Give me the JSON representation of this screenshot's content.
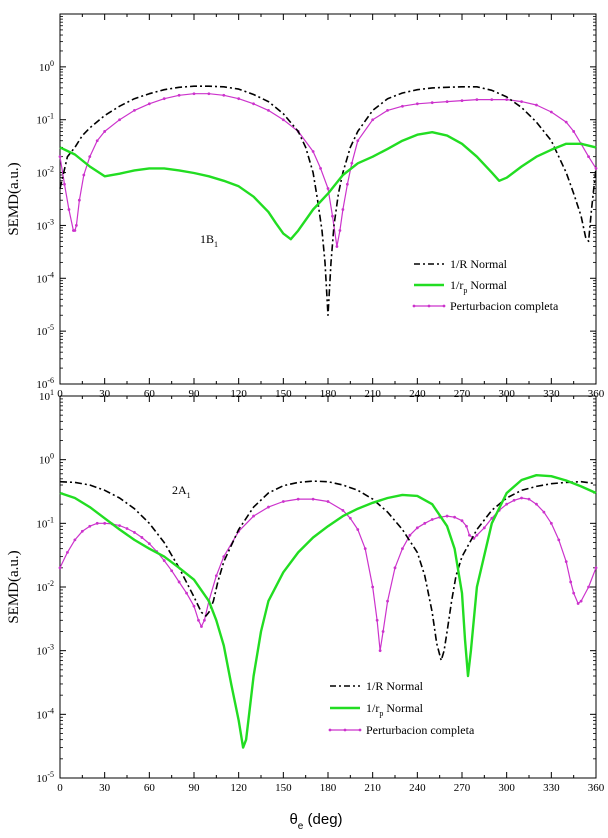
{
  "chart_data": [
    {
      "type": "line",
      "annotation": {
        "main": "1B",
        "sub": "1"
      },
      "ylabel": "SEMD(a.u.)",
      "yscale": "log",
      "xlim": [
        0,
        360
      ],
      "ylim_exp": [
        -6,
        1
      ],
      "xticks": [
        "0",
        "30",
        "60",
        "90",
        "120",
        "150",
        "180",
        "210",
        "240",
        "270",
        "300",
        "330",
        "360"
      ],
      "yticks": [
        {
          "exp": "-6"
        },
        {
          "exp": "-5"
        },
        {
          "exp": "-4"
        },
        {
          "exp": "-3"
        },
        {
          "exp": "-2"
        },
        {
          "exp": "-1"
        },
        {
          "exp": "0"
        }
      ],
      "legend": [
        {
          "main": "1/R Normal",
          "sub": ""
        },
        {
          "main": "1/r",
          "sub": "p",
          "tail": " Normal"
        },
        {
          "main": "Perturbacion completa",
          "sub": ""
        }
      ],
      "legend_position": "lower-right",
      "series": [
        {
          "name": "1/R Normal",
          "color": "#000000",
          "style": "dashdot",
          "x": [
            0,
            5,
            10,
            15,
            20,
            30,
            40,
            50,
            60,
            70,
            80,
            90,
            100,
            110,
            120,
            130,
            140,
            150,
            160,
            165,
            170,
            173,
            176,
            178,
            180,
            182,
            184,
            187,
            190,
            195,
            200,
            210,
            220,
            230,
            240,
            250,
            260,
            270,
            280,
            290,
            300,
            310,
            320,
            330,
            340,
            345,
            350,
            353,
            355,
            357,
            360
          ],
          "y": [
            0.005,
            0.02,
            0.03,
            0.05,
            0.07,
            0.12,
            0.18,
            0.25,
            0.31,
            0.37,
            0.41,
            0.43,
            0.43,
            0.42,
            0.38,
            0.3,
            0.22,
            0.13,
            0.06,
            0.03,
            0.01,
            0.003,
            0.0008,
            0.0002,
            2e-05,
            0.0002,
            0.001,
            0.004,
            0.01,
            0.03,
            0.06,
            0.15,
            0.25,
            0.32,
            0.37,
            0.4,
            0.41,
            0.42,
            0.42,
            0.36,
            0.27,
            0.17,
            0.09,
            0.04,
            0.01,
            0.004,
            0.0015,
            0.0006,
            0.0005,
            0.002,
            0.012
          ]
        },
        {
          "name": "1/r_p Normal",
          "color": "#22dd22",
          "style": "solid",
          "x": [
            0,
            10,
            20,
            30,
            40,
            50,
            60,
            70,
            80,
            90,
            100,
            110,
            120,
            130,
            140,
            145,
            150,
            155,
            160,
            170,
            180,
            190,
            200,
            210,
            220,
            230,
            240,
            250,
            260,
            270,
            280,
            290,
            295,
            300,
            310,
            320,
            330,
            340,
            350,
            360
          ],
          "y": [
            0.03,
            0.022,
            0.013,
            0.0085,
            0.0095,
            0.011,
            0.012,
            0.012,
            0.011,
            0.0098,
            0.0085,
            0.007,
            0.0055,
            0.0035,
            0.0018,
            0.0011,
            0.0007,
            0.00055,
            0.0008,
            0.002,
            0.004,
            0.009,
            0.015,
            0.02,
            0.028,
            0.04,
            0.052,
            0.058,
            0.05,
            0.035,
            0.02,
            0.01,
            0.007,
            0.008,
            0.013,
            0.02,
            0.027,
            0.035,
            0.035,
            0.03
          ]
        },
        {
          "name": "Perturbacion completa",
          "color": "#cc33cc",
          "style": "solid-marker",
          "x": [
            0,
            3,
            6,
            9,
            10,
            11,
            13,
            16,
            20,
            25,
            30,
            40,
            50,
            60,
            70,
            80,
            90,
            100,
            110,
            120,
            130,
            140,
            150,
            160,
            170,
            175,
            180,
            183,
            186,
            188,
            190,
            193,
            196,
            200,
            210,
            220,
            230,
            240,
            250,
            260,
            270,
            280,
            290,
            300,
            310,
            320,
            330,
            340,
            345,
            350,
            355,
            360
          ],
          "y": [
            0.02,
            0.006,
            0.002,
            0.0008,
            0.0008,
            0.001,
            0.003,
            0.009,
            0.02,
            0.04,
            0.06,
            0.1,
            0.15,
            0.2,
            0.25,
            0.29,
            0.31,
            0.31,
            0.29,
            0.25,
            0.2,
            0.15,
            0.1,
            0.06,
            0.025,
            0.012,
            0.005,
            0.0015,
            0.0004,
            0.0008,
            0.002,
            0.006,
            0.015,
            0.04,
            0.1,
            0.15,
            0.18,
            0.2,
            0.21,
            0.22,
            0.23,
            0.24,
            0.24,
            0.24,
            0.22,
            0.19,
            0.14,
            0.09,
            0.06,
            0.035,
            0.02,
            0.012
          ]
        }
      ]
    },
    {
      "type": "line",
      "annotation": {
        "main": "2A",
        "sub": "1"
      },
      "ylabel": "SEMD(a.u.)",
      "xlabel_main": "θ",
      "xlabel_sub": "e",
      "xlabel_tail": " (deg)",
      "yscale": "log",
      "xlim": [
        0,
        360
      ],
      "ylim_exp": [
        -5,
        1
      ],
      "xticks": [
        "0",
        "30",
        "60",
        "90",
        "120",
        "150",
        "180",
        "210",
        "240",
        "270",
        "300",
        "330",
        "360"
      ],
      "yticks": [
        {
          "exp": "-5"
        },
        {
          "exp": "-4"
        },
        {
          "exp": "-3"
        },
        {
          "exp": "-2"
        },
        {
          "exp": "-1"
        },
        {
          "exp": "0"
        },
        {
          "exp": "1"
        }
      ],
      "legend": [
        {
          "main": "1/R Normal",
          "sub": ""
        },
        {
          "main": "1/r",
          "sub": "p",
          "tail": " Normal"
        },
        {
          "main": "Perturbacion completa",
          "sub": ""
        }
      ],
      "legend_position": "lower-center",
      "series": [
        {
          "name": "1/R Normal",
          "color": "#000000",
          "style": "dashdot",
          "x": [
            0,
            10,
            20,
            30,
            40,
            50,
            60,
            70,
            80,
            90,
            95,
            98,
            100,
            103,
            106,
            110,
            120,
            130,
            140,
            150,
            160,
            170,
            180,
            190,
            200,
            210,
            220,
            230,
            240,
            245,
            250,
            253,
            256,
            258,
            260,
            263,
            266,
            270,
            280,
            290,
            300,
            310,
            320,
            330,
            340,
            350,
            360
          ],
          "y": [
            0.45,
            0.44,
            0.4,
            0.33,
            0.25,
            0.17,
            0.1,
            0.05,
            0.02,
            0.007,
            0.004,
            0.0035,
            0.004,
            0.006,
            0.012,
            0.025,
            0.08,
            0.18,
            0.3,
            0.39,
            0.44,
            0.46,
            0.45,
            0.4,
            0.33,
            0.24,
            0.15,
            0.08,
            0.035,
            0.015,
            0.004,
            0.0013,
            0.0007,
            0.001,
            0.002,
            0.006,
            0.015,
            0.03,
            0.08,
            0.16,
            0.25,
            0.33,
            0.38,
            0.42,
            0.44,
            0.45,
            0.42
          ]
        },
        {
          "name": "1/r_p Normal",
          "color": "#22dd22",
          "style": "solid",
          "x": [
            0,
            10,
            20,
            30,
            40,
            50,
            60,
            70,
            80,
            90,
            100,
            105,
            110,
            115,
            120,
            123,
            125,
            127,
            130,
            135,
            140,
            150,
            160,
            170,
            180,
            190,
            200,
            210,
            220,
            230,
            240,
            250,
            260,
            265,
            270,
            272,
            274,
            276,
            280,
            290,
            300,
            310,
            320,
            330,
            340,
            350,
            360
          ],
          "y": [
            0.3,
            0.25,
            0.18,
            0.12,
            0.08,
            0.055,
            0.04,
            0.03,
            0.02,
            0.013,
            0.006,
            0.003,
            0.0012,
            0.0003,
            8e-05,
            3e-05,
            4e-05,
            0.0001,
            0.0004,
            0.002,
            0.006,
            0.017,
            0.035,
            0.06,
            0.09,
            0.13,
            0.17,
            0.21,
            0.25,
            0.28,
            0.27,
            0.2,
            0.09,
            0.04,
            0.008,
            0.0015,
            0.0004,
            0.001,
            0.01,
            0.1,
            0.3,
            0.48,
            0.57,
            0.55,
            0.47,
            0.38,
            0.3
          ]
        },
        {
          "name": "Perturbacion completa",
          "color": "#cc33cc",
          "style": "solid-marker",
          "x": [
            0,
            5,
            10,
            15,
            20,
            25,
            30,
            35,
            40,
            45,
            50,
            55,
            60,
            65,
            70,
            75,
            80,
            85,
            90,
            93,
            95,
            97,
            100,
            105,
            110,
            120,
            130,
            140,
            150,
            160,
            170,
            180,
            190,
            195,
            200,
            205,
            210,
            213,
            215,
            217,
            220,
            225,
            230,
            235,
            240,
            245,
            250,
            255,
            260,
            265,
            270,
            273,
            275,
            278,
            280,
            285,
            290,
            295,
            300,
            305,
            310,
            315,
            320,
            325,
            330,
            335,
            340,
            343,
            345,
            348,
            350,
            355,
            360
          ],
          "y": [
            0.02,
            0.035,
            0.055,
            0.075,
            0.09,
            0.1,
            0.1,
            0.098,
            0.092,
            0.083,
            0.072,
            0.06,
            0.048,
            0.036,
            0.026,
            0.018,
            0.012,
            0.008,
            0.005,
            0.003,
            0.0024,
            0.003,
            0.006,
            0.015,
            0.03,
            0.075,
            0.13,
            0.18,
            0.22,
            0.24,
            0.24,
            0.22,
            0.16,
            0.12,
            0.08,
            0.04,
            0.01,
            0.003,
            0.001,
            0.002,
            0.006,
            0.02,
            0.04,
            0.065,
            0.085,
            0.1,
            0.115,
            0.125,
            0.13,
            0.125,
            0.11,
            0.09,
            0.065,
            0.058,
            0.065,
            0.085,
            0.12,
            0.16,
            0.2,
            0.23,
            0.25,
            0.24,
            0.2,
            0.15,
            0.1,
            0.055,
            0.025,
            0.012,
            0.008,
            0.0055,
            0.006,
            0.01,
            0.02
          ]
        }
      ]
    }
  ]
}
